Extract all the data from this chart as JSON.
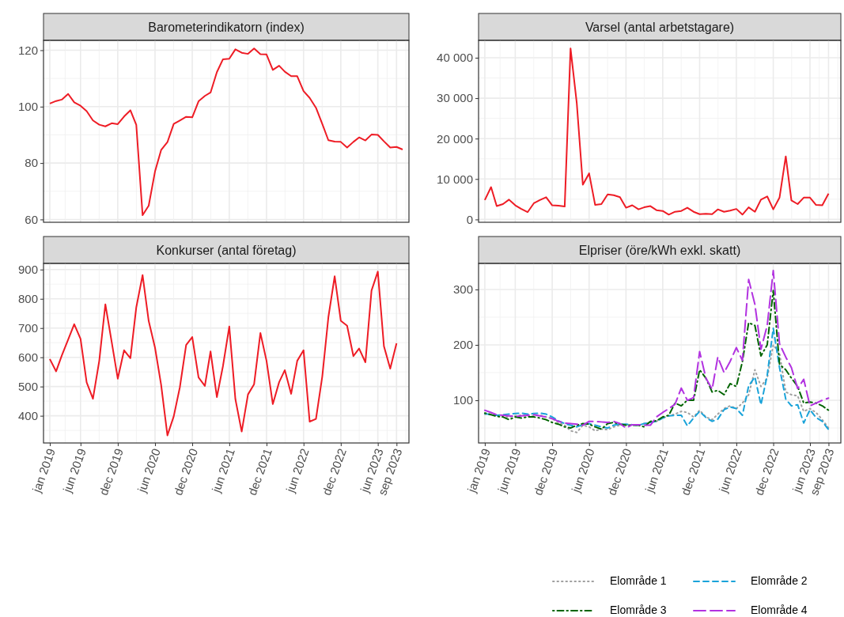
{
  "chart_data": [
    {
      "type": "line",
      "title": "Barometerindikatorn (index)",
      "tick_labels": "y",
      "grid": true,
      "x": [
        "2019-01",
        "2019-02",
        "2019-03",
        "2019-04",
        "2019-05",
        "2019-06",
        "2019-07",
        "2019-08",
        "2019-09",
        "2019-10",
        "2019-11",
        "2019-12",
        "2020-01",
        "2020-02",
        "2020-03",
        "2020-04",
        "2020-05",
        "2020-06",
        "2020-07",
        "2020-08",
        "2020-09",
        "2020-10",
        "2020-11",
        "2020-12",
        "2021-01",
        "2021-02",
        "2021-03",
        "2021-04",
        "2021-05",
        "2021-06",
        "2021-07",
        "2021-08",
        "2021-09",
        "2021-10",
        "2021-11",
        "2021-12",
        "2022-01",
        "2022-02",
        "2022-03",
        "2022-04",
        "2022-05",
        "2022-06",
        "2022-07",
        "2022-08",
        "2022-09",
        "2022-10",
        "2022-11",
        "2022-12",
        "2023-01",
        "2023-02",
        "2023-03",
        "2023-04",
        "2023-05",
        "2023-06",
        "2023-07",
        "2023-08",
        "2023-09",
        "2023-10"
      ],
      "series": [
        {
          "color": "#ee1c25",
          "values": [
            101.1,
            102,
            102.5,
            104.5,
            101.5,
            100.3,
            98.4,
            95.1,
            93.6,
            93,
            94.1,
            93.8,
            96.5,
            98.7,
            93.5,
            61.5,
            64.9,
            77,
            84.6,
            87.4,
            93.9,
            95.1,
            96.4,
            96.2,
            101.9,
            103.8,
            105,
            112.2,
            116.8,
            117,
            120.3,
            119.1,
            118.7,
            120.6,
            118.6,
            118.5,
            113,
            114.5,
            112.4,
            110.8,
            110.8,
            105.5,
            103.1,
            99.6,
            93.9,
            88.1,
            87.6,
            87.5,
            85.5,
            87.5,
            89.1,
            88,
            90.1,
            90,
            87.7,
            85.5,
            85.7,
            84.8
          ]
        }
      ],
      "xlim": [
        "2018-12-01",
        "2023-11-01"
      ],
      "xticks": [
        {
          "value": "2019-01",
          "label": null
        },
        {
          "value": "2019-06",
          "label": null
        },
        {
          "value": "2019-12",
          "label": null
        },
        {
          "value": "2020-06",
          "label": null
        },
        {
          "value": "2020-12",
          "label": null
        },
        {
          "value": "2021-06",
          "label": null
        },
        {
          "value": "2021-12",
          "label": null
        },
        {
          "value": "2022-06",
          "label": null
        },
        {
          "value": "2022-12",
          "label": null
        },
        {
          "value": "2023-06",
          "label": null
        },
        {
          "value": "2023-09",
          "label": null
        }
      ],
      "ylim": [
        59,
        123.5
      ],
      "yticks": [
        60,
        80,
        100,
        120
      ]
    },
    {
      "type": "line",
      "title": "Varsel (antal arbetstagare)",
      "tick_labels": "y",
      "grid": true,
      "x": [
        "2019-01",
        "2019-02",
        "2019-03",
        "2019-04",
        "2019-05",
        "2019-06",
        "2019-07",
        "2019-08",
        "2019-09",
        "2019-10",
        "2019-11",
        "2019-12",
        "2020-01",
        "2020-02",
        "2020-03",
        "2020-04",
        "2020-05",
        "2020-06",
        "2020-07",
        "2020-08",
        "2020-09",
        "2020-10",
        "2020-11",
        "2020-12",
        "2021-01",
        "2021-02",
        "2021-03",
        "2021-04",
        "2021-05",
        "2021-06",
        "2021-07",
        "2021-08",
        "2021-09",
        "2021-10",
        "2021-11",
        "2021-12",
        "2022-01",
        "2022-02",
        "2022-03",
        "2022-04",
        "2022-05",
        "2022-06",
        "2022-07",
        "2022-08",
        "2022-09",
        "2022-10",
        "2022-11",
        "2022-12",
        "2023-01",
        "2023-02",
        "2023-03",
        "2023-04",
        "2023-05",
        "2023-06",
        "2023-07",
        "2023-08",
        "2023-09"
      ],
      "series": [
        {
          "color": "#ee1c25",
          "values": [
            4800,
            8000,
            3300,
            3800,
            4900,
            3500,
            2600,
            1800,
            4000,
            4800,
            5500,
            3500,
            3400,
            3200,
            42300,
            28700,
            8600,
            11400,
            3600,
            3800,
            6200,
            6000,
            5500,
            2900,
            3500,
            2500,
            3000,
            3300,
            2300,
            2100,
            1200,
            1900,
            2100,
            2900,
            1900,
            1300,
            1400,
            1300,
            2500,
            1900,
            2200,
            2600,
            1200,
            3000,
            1900,
            4900,
            5700,
            2500,
            5400,
            15600,
            4700,
            3800,
            5400,
            5400,
            3600,
            3500,
            6400
          ]
        }
      ],
      "xlim": [
        "2018-12-01",
        "2023-11-01"
      ],
      "xticks": [
        {
          "value": "2019-01",
          "label": null
        },
        {
          "value": "2019-06",
          "label": null
        },
        {
          "value": "2019-12",
          "label": null
        },
        {
          "value": "2020-06",
          "label": null
        },
        {
          "value": "2020-12",
          "label": null
        },
        {
          "value": "2021-06",
          "label": null
        },
        {
          "value": "2021-12",
          "label": null
        },
        {
          "value": "2022-06",
          "label": null
        },
        {
          "value": "2022-12",
          "label": null
        },
        {
          "value": "2023-06",
          "label": null
        },
        {
          "value": "2023-09",
          "label": null
        }
      ],
      "ylim": [
        -700,
        44300
      ],
      "yticks": [
        0,
        {
          "value": 10000,
          "label": "10 000"
        },
        {
          "value": 20000,
          "label": "20 000"
        },
        {
          "value": 30000,
          "label": "30 000"
        },
        {
          "value": 40000,
          "label": "40 000"
        }
      ]
    },
    {
      "type": "line",
      "title": "Konkurser (antal företag)",
      "grid": true,
      "x": [
        "2019-01",
        "2019-02",
        "2019-03",
        "2019-04",
        "2019-05",
        "2019-06",
        "2019-07",
        "2019-08",
        "2019-09",
        "2019-10",
        "2019-11",
        "2019-12",
        "2020-01",
        "2020-02",
        "2020-03",
        "2020-04",
        "2020-05",
        "2020-06",
        "2020-07",
        "2020-08",
        "2020-09",
        "2020-10",
        "2020-11",
        "2020-12",
        "2021-01",
        "2021-02",
        "2021-03",
        "2021-04",
        "2021-05",
        "2021-06",
        "2021-07",
        "2021-08",
        "2021-09",
        "2021-10",
        "2021-11",
        "2021-12",
        "2022-01",
        "2022-02",
        "2022-03",
        "2022-04",
        "2022-05",
        "2022-06",
        "2022-07",
        "2022-08",
        "2022-09",
        "2022-10",
        "2022-11",
        "2022-12",
        "2023-01",
        "2023-02",
        "2023-03",
        "2023-04",
        "2023-05",
        "2023-06",
        "2023-07",
        "2023-08",
        "2023-09"
      ],
      "series": [
        {
          "color": "#ee1c25",
          "values": [
            594,
            552,
            606,
            660,
            713,
            663,
            514,
            458,
            588,
            781,
            653,
            527,
            624,
            597,
            771,
            881,
            724,
            633,
            506,
            333,
            398,
            497,
            642,
            669,
            531,
            502,
            620,
            464,
            570,
            705,
            457,
            346,
            473,
            508,
            683,
            588,
            440,
            515,
            556,
            475,
            588,
            624,
            380,
            389,
            534,
            737,
            877,
            725,
            708,
            604,
            630,
            583,
            828,
            893,
            638,
            561,
            648
          ]
        }
      ],
      "xlim": [
        "2018-12-01",
        "2023-11-01"
      ],
      "xticks": [
        {
          "value": "2019-01",
          "label": "jan 2019"
        },
        {
          "value": "2019-06",
          "label": "jun 2019"
        },
        {
          "value": "2019-12",
          "label": "dec 2019"
        },
        {
          "value": "2020-06",
          "label": "jun 2020"
        },
        {
          "value": "2020-12",
          "label": "dec 2020"
        },
        {
          "value": "2021-06",
          "label": "jun 2021"
        },
        {
          "value": "2021-12",
          "label": "dec 2021"
        },
        {
          "value": "2022-06",
          "label": "jun 2022"
        },
        {
          "value": "2022-12",
          "label": "dec 2022"
        },
        {
          "value": "2023-06",
          "label": "jun 2023"
        },
        {
          "value": "2023-09",
          "label": "sep 2023"
        }
      ],
      "ylim": [
        307,
        921
      ],
      "yticks": [
        400,
        500,
        600,
        700,
        800,
        900
      ]
    },
    {
      "type": "line",
      "title": "Elpriser (öre/kWh exkl. skatt)",
      "grid": true,
      "legend": "bottom right",
      "x": [
        "2019-01",
        "2019-02",
        "2019-03",
        "2019-04",
        "2019-05",
        "2019-06",
        "2019-07",
        "2019-08",
        "2019-09",
        "2019-10",
        "2019-11",
        "2019-12",
        "2020-01",
        "2020-02",
        "2020-03",
        "2020-04",
        "2020-05",
        "2020-06",
        "2020-07",
        "2020-08",
        "2020-09",
        "2020-10",
        "2020-11",
        "2020-12",
        "2021-01",
        "2021-02",
        "2021-03",
        "2021-04",
        "2021-05",
        "2021-06",
        "2021-07",
        "2021-08",
        "2021-09",
        "2021-10",
        "2021-11",
        "2021-12",
        "2022-01",
        "2022-02",
        "2022-03",
        "2022-04",
        "2022-05",
        "2022-06",
        "2022-07",
        "2022-08",
        "2022-09",
        "2022-10",
        "2022-11",
        "2022-12",
        "2023-01",
        "2023-02",
        "2023-03",
        "2023-04",
        "2023-05",
        "2023-06",
        "2023-07",
        "2023-08",
        "2023-09"
      ],
      "series": [
        {
          "name": "Elområde 1",
          "color": "#a0a0a0",
          "line_style": "dotted",
          "values": [
            75,
            74,
            72,
            70,
            70,
            72,
            73,
            72,
            72,
            73,
            70,
            67,
            60,
            55,
            45,
            42,
            55,
            52,
            45,
            48,
            47,
            52,
            55,
            56,
            56,
            55,
            58,
            60,
            62,
            68,
            72,
            75,
            80,
            78,
            70,
            82,
            70,
            65,
            75,
            85,
            90,
            85,
            95,
            110,
            155,
            125,
            140,
            200,
            185,
            115,
            110,
            108,
            80,
            85,
            78,
            65,
            50
          ]
        },
        {
          "name": "Elområde 2",
          "color": "#1aa3d9",
          "line_style": "dashed",
          "values": [
            76,
            74,
            73,
            74,
            75,
            76,
            77,
            75,
            76,
            77,
            75,
            70,
            63,
            58,
            55,
            52,
            56,
            58,
            55,
            52,
            50,
            55,
            57,
            57,
            56,
            55,
            58,
            60,
            62,
            68,
            72,
            73,
            73,
            54,
            68,
            80,
            69,
            62,
            66,
            83,
            88,
            85,
            73,
            126,
            142,
            92,
            145,
            230,
            159,
            102,
            90,
            92,
            59,
            83,
            69,
            62,
            47
          ]
        },
        {
          "name": "Elområde 3",
          "color": "#006400",
          "line_style": "dashdot",
          "values": [
            77,
            74,
            71,
            70,
            65,
            70,
            68,
            70,
            70,
            68,
            65,
            60,
            57,
            52,
            50,
            55,
            58,
            57,
            52,
            48,
            58,
            60,
            57,
            55,
            55,
            55,
            52,
            62,
            63,
            70,
            73,
            95,
            90,
            100,
            100,
            155,
            140,
            115,
            118,
            110,
            130,
            125,
            170,
            240,
            235,
            180,
            200,
            298,
            165,
            155,
            140,
            125,
            95,
            97,
            95,
            90,
            82
          ]
        },
        {
          "name": "Elområde 4",
          "color": "#b232e0",
          "line_style": "longdash",
          "values": [
            82,
            78,
            74,
            73,
            72,
            71,
            72,
            73,
            74,
            72,
            70,
            67,
            62,
            59,
            58,
            57,
            55,
            62,
            62,
            61,
            60,
            62,
            58,
            50,
            56,
            56,
            55,
            55,
            70,
            78,
            85,
            93,
            122,
            100,
            105,
            188,
            140,
            120,
            178,
            150,
            170,
            195,
            172,
            318,
            273,
            192,
            235,
            334,
            202,
            178,
            159,
            121,
            138,
            90,
            95,
            100,
            104
          ]
        }
      ],
      "xlim": [
        "2018-12-01",
        "2023-11-01"
      ],
      "xticks": [
        {
          "value": "2019-01",
          "label": "jan 2019"
        },
        {
          "value": "2019-06",
          "label": "jun 2019"
        },
        {
          "value": "2019-12",
          "label": "dec 2019"
        },
        {
          "value": "2020-06",
          "label": "jun 2020"
        },
        {
          "value": "2020-12",
          "label": "dec 2020"
        },
        {
          "value": "2021-06",
          "label": "jun 2021"
        },
        {
          "value": "2021-12",
          "label": "dec 2021"
        },
        {
          "value": "2022-06",
          "label": "jun 2022"
        },
        {
          "value": "2022-12",
          "label": "dec 2022"
        },
        {
          "value": "2023-06",
          "label": "jun 2023"
        },
        {
          "value": "2023-09",
          "label": "sep 2023"
        }
      ],
      "ylim": [
        23,
        347
      ],
      "yticks": [
        100,
        200,
        300
      ]
    }
  ]
}
